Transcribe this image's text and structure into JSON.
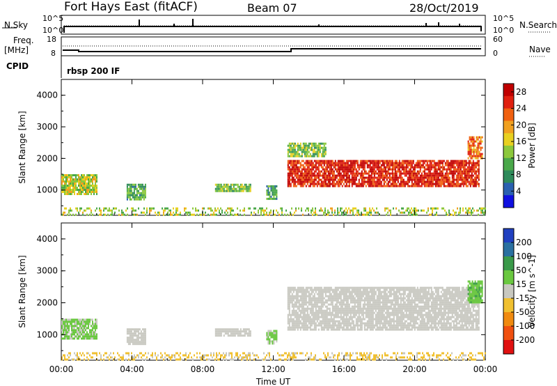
{
  "header": {
    "station": "Fort Hays East (fitACF)",
    "beam": "Beam 07",
    "date": "28/Oct/2019"
  },
  "panels": {
    "nsky_label": "N.Sky",
    "nsearch_label": "N.Search",
    "freq_label_line1": "Freq.",
    "freq_label_line2": "[MHz]",
    "nave_label": "Nave",
    "cpid_label": "CPID",
    "cpid_value": "rbsp 200 IF",
    "nsky_ticks": [
      "10^5",
      "10^0"
    ],
    "nsearch_ticks": [
      "10^5",
      "10^0"
    ],
    "freq_ticks": [
      "18",
      "8"
    ],
    "nave_ticks": [
      "60",
      "0"
    ]
  },
  "colors": {
    "power_scale": [
      "#1010e0",
      "#2a60b0",
      "#2e8a5a",
      "#4aa84a",
      "#8cc83c",
      "#e8d020",
      "#f0a020",
      "#f06010",
      "#e02010",
      "#c00000"
    ],
    "velocity_scale": [
      "#2040c0",
      "#2a70a0",
      "#3a9a4a",
      "#6ac840",
      "#c8c8c0",
      "#f0c030",
      "#f08a10",
      "#f05010",
      "#e01010"
    ],
    "velocity_neutral": "#c8c8c0"
  },
  "chart_data": [
    {
      "type": "heatmap",
      "title": "",
      "xlabel": "Time UT",
      "ylabel": "Slant Range [km]",
      "xlim": [
        "00:00",
        "00:00"
      ],
      "ylim": [
        200,
        4500
      ],
      "x_ticks": [
        "00:00",
        "04:00",
        "08:00",
        "12:00",
        "16:00",
        "20:00",
        "00:00"
      ],
      "y_ticks": [
        "1000",
        "2000",
        "3000",
        "4000"
      ],
      "colorbar_label": "Power [dB]",
      "colorbar_ticks": [
        "4",
        "8",
        "12",
        "16",
        "20",
        "24",
        "28"
      ],
      "colorbar_range": [
        0,
        30
      ],
      "regions": [
        {
          "t0": 0.0,
          "t1": 2.0,
          "r0": 850,
          "r1": 1500,
          "v": 15
        },
        {
          "t0": 3.7,
          "t1": 4.8,
          "r0": 700,
          "r1": 1200,
          "v": 10
        },
        {
          "t0": 8.7,
          "t1": 10.7,
          "r0": 950,
          "r1": 1200,
          "v": 13
        },
        {
          "t0": 11.6,
          "t1": 12.2,
          "r0": 750,
          "r1": 1150,
          "v": 10
        },
        {
          "t0": 12.8,
          "t1": 15.0,
          "r0": 2050,
          "r1": 2500,
          "v": 13
        },
        {
          "t0": 12.8,
          "t1": 23.6,
          "r0": 1150,
          "r1": 1950,
          "v": 26
        },
        {
          "t0": 23.0,
          "t1": 23.8,
          "r0": 2000,
          "r1": 2700,
          "v": 22
        },
        {
          "t0": 0.0,
          "t1": 24.0,
          "r0": 200,
          "r1": 450,
          "v": 14
        }
      ]
    },
    {
      "type": "heatmap",
      "title": "",
      "xlabel": "Time UT",
      "ylabel": "Slant Range [km]",
      "xlim": [
        "00:00",
        "00:00"
      ],
      "ylim": [
        200,
        4500
      ],
      "x_ticks": [
        "00:00",
        "04:00",
        "08:00",
        "12:00",
        "16:00",
        "20:00",
        "00:00"
      ],
      "y_ticks": [
        "1000",
        "2000",
        "3000",
        "4000"
      ],
      "colorbar_label": "Velocity [m s^-1]",
      "colorbar_ticks": [
        "200",
        "100",
        "50",
        "15",
        "-15",
        "-50",
        "-100",
        "-200"
      ],
      "colorbar_range": [
        -250,
        250
      ],
      "regions": [
        {
          "t0": 0.0,
          "t1": 2.0,
          "r0": 850,
          "r1": 1500,
          "v": 40
        },
        {
          "t0": 3.7,
          "t1": 4.8,
          "r0": 700,
          "r1": 1200,
          "v": 0
        },
        {
          "t0": 8.7,
          "t1": 10.7,
          "r0": 950,
          "r1": 1200,
          "v": 0
        },
        {
          "t0": 11.6,
          "t1": 12.2,
          "r0": 750,
          "r1": 1150,
          "v": 30
        },
        {
          "t0": 12.8,
          "t1": 23.6,
          "r0": 1150,
          "r1": 2500,
          "v": 0
        },
        {
          "t0": 23.0,
          "t1": 23.8,
          "r0": 2000,
          "r1": 2700,
          "v": 60
        },
        {
          "t0": 0.0,
          "t1": 24.0,
          "r0": 200,
          "r1": 450,
          "v": -40
        }
      ]
    }
  ]
}
